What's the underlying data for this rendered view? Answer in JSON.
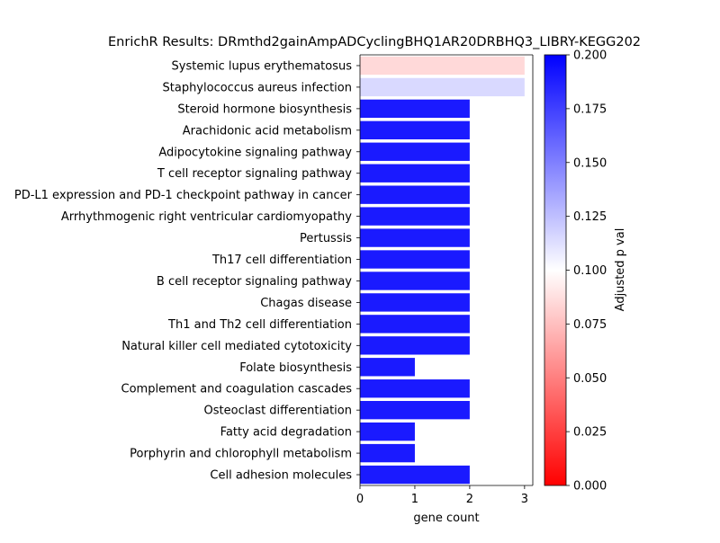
{
  "chart_data": {
    "type": "bar",
    "orientation": "horizontal",
    "title": "EnrichR Results: DRmthd2gainAmpADCyclingBHQ1AR20DRBHQ3_LIBRY-KEGG202",
    "xlabel": "gene count",
    "ylabel": "",
    "xlim": [
      0,
      3.15
    ],
    "x_ticks": [
      0,
      1,
      2,
      3
    ],
    "grid": false,
    "categories": [
      "Systemic lupus erythematosus",
      "Staphylococcus aureus infection",
      "Steroid hormone biosynthesis",
      "Arachidonic acid metabolism",
      "Adipocytokine signaling pathway",
      "T cell receptor signaling pathway",
      "PD-L1 expression and PD-1 checkpoint pathway in cancer",
      "Arrhythmogenic right ventricular cardiomyopathy",
      "Pertussis",
      "Th17 cell differentiation",
      "B cell receptor signaling pathway",
      "Chagas disease",
      "Th1 and Th2 cell differentiation",
      "Natural killer cell mediated cytotoxicity",
      "Folate biosynthesis",
      "Complement and coagulation cascades",
      "Osteoclast differentiation",
      "Fatty acid degradation",
      "Porphyrin and chlorophyll metabolism",
      "Cell adhesion molecules"
    ],
    "values": [
      3,
      3,
      2,
      2,
      2,
      2,
      2,
      2,
      2,
      2,
      2,
      2,
      2,
      2,
      1,
      2,
      2,
      1,
      1,
      2
    ],
    "adjusted_p_values": [
      0.085,
      0.115,
      0.19,
      0.19,
      0.19,
      0.19,
      0.19,
      0.19,
      0.19,
      0.19,
      0.19,
      0.19,
      0.19,
      0.19,
      0.19,
      0.19,
      0.19,
      0.19,
      0.19,
      0.19
    ],
    "colorbar": {
      "label": "Adjusted p val",
      "range": [
        0,
        0.2
      ],
      "ticks": [
        "0.000",
        "0.025",
        "0.050",
        "0.075",
        "0.100",
        "0.125",
        "0.150",
        "0.175",
        "0.200"
      ],
      "colormap": [
        "#ff0000",
        "#ffffff",
        "#0000ff"
      ]
    }
  }
}
